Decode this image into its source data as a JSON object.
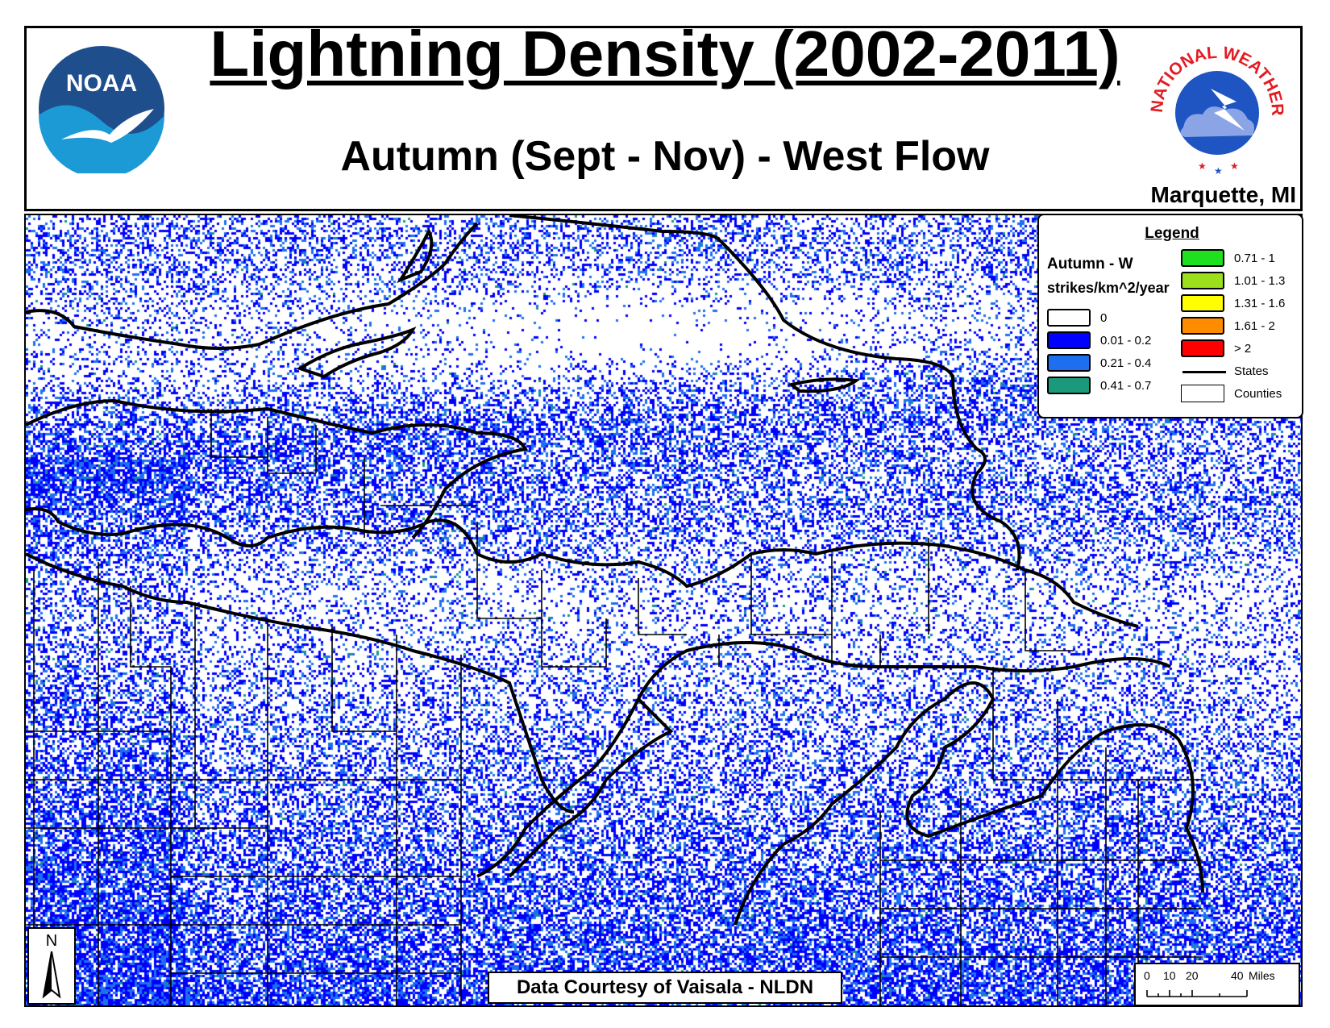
{
  "header": {
    "title": "Lightning Density (2002-2011)",
    "subtitle": "Autumn (Sept - Nov) - West Flow",
    "office": "Marquette, MI"
  },
  "logos": {
    "noaa": {
      "text": "NOAA",
      "icon": "noaa-seagull-logo",
      "colors": [
        "#1f4e8c",
        "#1b9ad6"
      ]
    },
    "nws": {
      "text": "NATIONAL WEATHER SERVICE",
      "icon": "lightning-cloud-logo",
      "colors": [
        "#e31b23",
        "#1f55c2"
      ]
    }
  },
  "legend": {
    "title": "Legend",
    "layer_name": "Autumn - W",
    "units": "strikes/km^2/year",
    "classes": [
      {
        "label": "0",
        "color": "#ffffff"
      },
      {
        "label": "0.01 - 0.2",
        "color": "#0000ff"
      },
      {
        "label": "0.21 - 0.4",
        "color": "#1e6ff0"
      },
      {
        "label": "0.41 - 0.7",
        "color": "#1a9a7a"
      },
      {
        "label": "0.71 - 1",
        "color": "#1ee01e"
      },
      {
        "label": "1.01 - 1.3",
        "color": "#9be01a"
      },
      {
        "label": "1.31 - 1.6",
        "color": "#ffff00"
      },
      {
        "label": "1.61 - 2",
        "color": "#ff8c00"
      },
      {
        "label": "> 2",
        "color": "#ff0000"
      }
    ],
    "lines": [
      {
        "label": "States",
        "type": "line"
      },
      {
        "label": "Counties",
        "type": "box"
      }
    ]
  },
  "credit": "Data Courtesy of Vaisala - NLDN",
  "north_arrow": {
    "letter": "N",
    "icon": "north-arrow-icon"
  },
  "scale_bar": {
    "ticks": [
      "0",
      "10",
      "20",
      "40"
    ],
    "unit": "Miles"
  }
}
